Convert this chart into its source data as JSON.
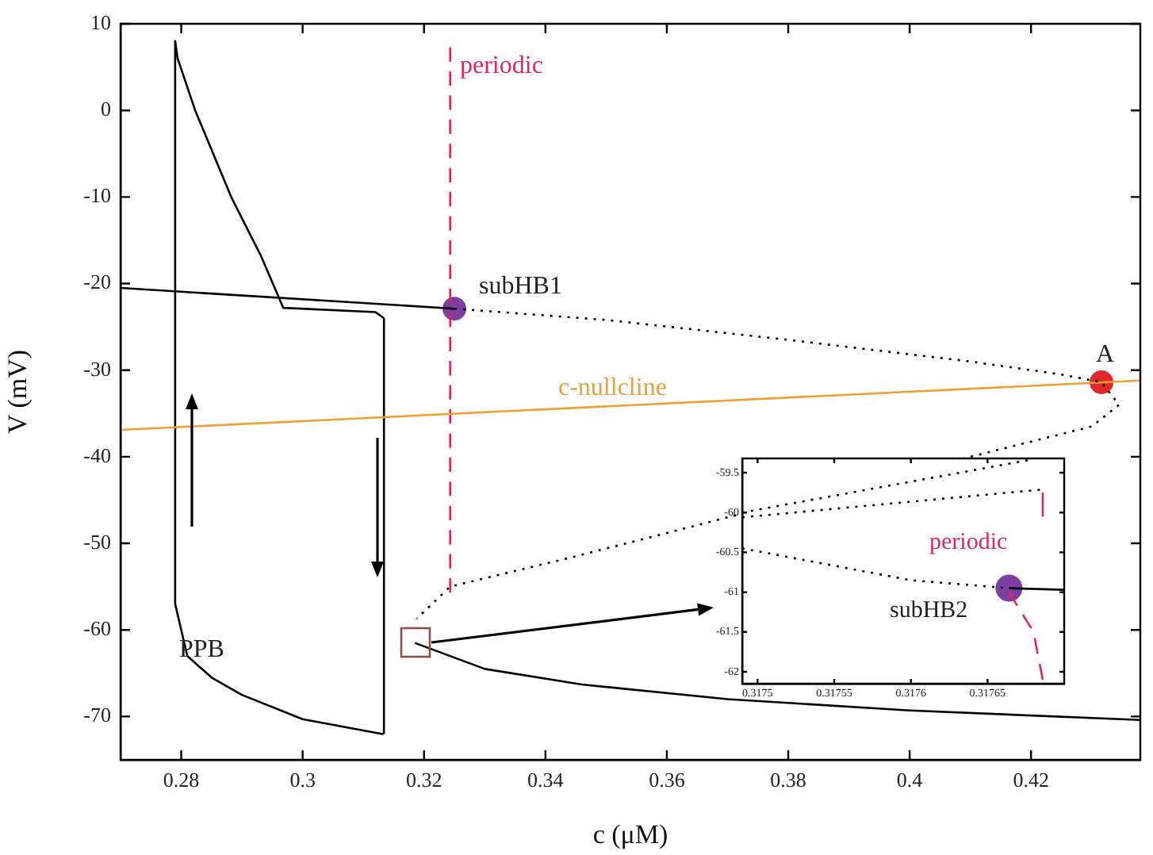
{
  "chart_data": [
    {
      "type": "line",
      "xlabel": "c (μM)",
      "ylabel": "V (mV)",
      "xlim": [
        0.27,
        0.438
      ],
      "ylim": [
        -75,
        10
      ],
      "xticks": [
        0.28,
        0.3,
        0.32,
        0.34,
        0.36,
        0.38,
        0.4,
        0.42
      ],
      "yticks": [
        -70,
        -60,
        -50,
        -40,
        -30,
        -20,
        -10,
        0,
        10
      ],
      "grid": false,
      "marker": "none",
      "series": [
        {
          "color": "#000000",
          "line_style": "solid",
          "x": [
            0.27,
            0.325
          ],
          "values": [
            -20.5,
            -22.9
          ]
        },
        {
          "color": "#000000",
          "line_style": "dotted",
          "x": [
            0.325,
            0.35,
            0.38,
            0.41,
            0.425,
            0.4316,
            0.4345,
            0.43,
            0.37,
            0.345,
            0.3243,
            0.3188
          ],
          "values": [
            -22.9,
            -24.2,
            -26.5,
            -29,
            -30.5,
            -31.4,
            -34,
            -36.5,
            -47,
            -51.5,
            -55,
            -58.7
          ]
        },
        {
          "color": "#000000",
          "line_style": "solid",
          "x": [
            0.3185,
            0.33,
            0.346,
            0.37,
            0.4,
            0.438
          ],
          "values": [
            -61.5,
            -64.5,
            -66.3,
            -68,
            -69.3,
            -70.4
          ]
        },
        {
          "color": "#f0a030",
          "line_style": "solid",
          "x": [
            0.27,
            0.438
          ],
          "values": [
            -36.9,
            -31.2
          ]
        },
        {
          "color": "#000000",
          "line_style": "solid",
          "x": [
            0.279,
            0.279,
            0.281,
            0.285,
            0.29,
            0.3,
            0.313,
            0.3134
          ],
          "values": [
            8,
            -57,
            -63,
            -65.5,
            -67.5,
            -70.3,
            -72,
            -72
          ]
        },
        {
          "color": "#000000",
          "line_style": "solid",
          "x": [
            0.3134,
            0.3134
          ],
          "values": [
            -72,
            -24
          ]
        },
        {
          "color": "#000000",
          "line_style": "solid",
          "x": [
            0.279,
            0.2794,
            0.2823,
            0.2883,
            0.2932,
            0.2968,
            0.312,
            0.3134
          ],
          "values": [
            8,
            6,
            0,
            -10.1,
            -16.9,
            -22.8,
            -23.3,
            -24
          ]
        },
        {
          "color": "#e0245e",
          "line_style": "dashed",
          "x": [
            0.3243,
            0.3243
          ],
          "values": [
            7.3,
            -55.7
          ]
        },
        {
          "type": "scatter",
          "color": "#7b3fa0",
          "marker": "circle",
          "x": [
            0.325
          ],
          "values": [
            -22.9
          ]
        },
        {
          "type": "scatter",
          "color": "#e02828",
          "marker": "circle",
          "x": [
            0.4316
          ],
          "values": [
            -31.4
          ]
        }
      ],
      "annotations": [
        "periodic",
        "subHB1",
        "A",
        "c-nullcline",
        "PPB"
      ]
    },
    {
      "type": "line",
      "xlim": [
        0.31749,
        0.3177
      ],
      "ylim": [
        -62.15,
        -59.32
      ],
      "xticks": [
        0.3175,
        0.31755,
        0.3176,
        0.31765
      ],
      "yticks": [
        -62,
        -61.5,
        -61,
        -60.5,
        -60,
        -59.5
      ],
      "grid": false,
      "marker": "none",
      "series": [
        {
          "color": "#000000",
          "line_style": "dotted",
          "x": [
            0.31749,
            0.31768
          ],
          "values": [
            -60,
            -59.33
          ]
        },
        {
          "color": "#000000",
          "line_style": "dotted",
          "x": [
            0.31749,
            0.317686
          ],
          "values": [
            -60.06,
            -59.71
          ]
        },
        {
          "color": "#000000",
          "line_style": "dotted",
          "x": [
            0.31749,
            0.3176,
            0.317664
          ],
          "values": [
            -60.45,
            -60.85,
            -60.95
          ]
        },
        {
          "color": "#000000",
          "line_style": "solid",
          "x": [
            0.317664,
            0.3177
          ],
          "values": [
            -60.95,
            -60.97
          ]
        },
        {
          "color": "#e0245e",
          "line_style": "dashed",
          "x": [
            0.317686,
            0.317686
          ],
          "values": [
            -59.75,
            -60.05
          ]
        },
        {
          "color": "#e0245e",
          "line_style": "dashed",
          "x": [
            0.317664,
            0.31768,
            0.317686
          ],
          "values": [
            -61,
            -61.5,
            -62.1
          ]
        },
        {
          "type": "scatter",
          "color": "#7b3fa0",
          "marker": "circle",
          "x": [
            0.317664
          ],
          "values": [
            -60.95
          ]
        }
      ],
      "annotations": [
        "periodic",
        "subHB2"
      ]
    }
  ]
}
